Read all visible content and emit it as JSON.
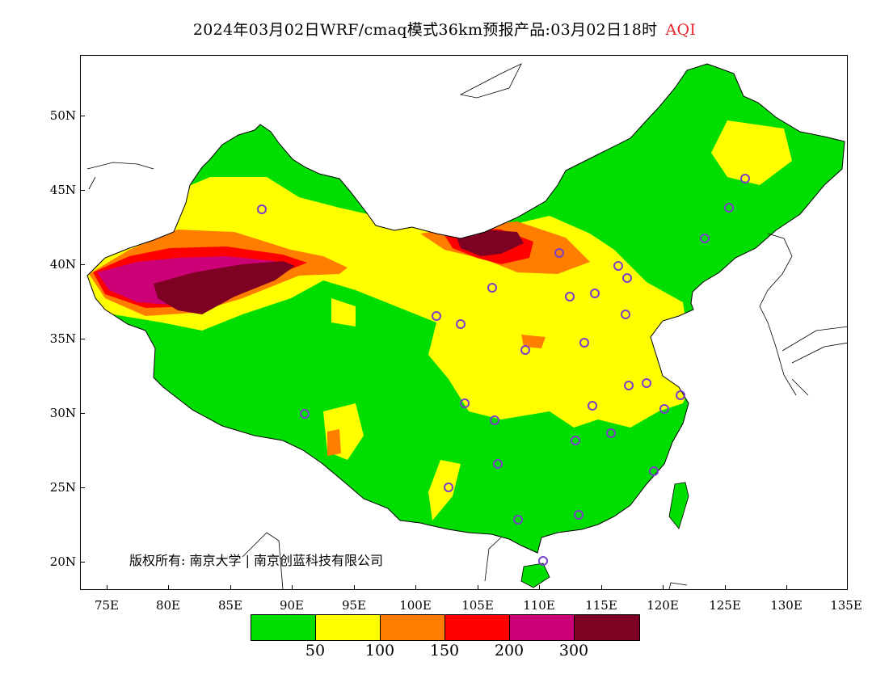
{
  "title": {
    "text": "2024年03月02日WRF/cmaq模式36km预报产品:03月02日18时",
    "variable": "AQI",
    "variable_color": "#e8262b"
  },
  "axes": {
    "lat_labels": [
      "50N",
      "45N",
      "40N",
      "35N",
      "30N",
      "25N",
      "20N"
    ],
    "lon_labels": [
      "75E",
      "80E",
      "85E",
      "90E",
      "95E",
      "100E",
      "105E",
      "110E",
      "115E",
      "120E",
      "125E",
      "130E",
      "135E"
    ],
    "lat_values": [
      50,
      45,
      40,
      35,
      30,
      25,
      20
    ],
    "lon_values": [
      75,
      80,
      85,
      90,
      95,
      100,
      105,
      110,
      115,
      120,
      125,
      130,
      135
    ]
  },
  "copyright": "版权所有: 南京大学 | 南京创蓝科技有限公司",
  "legend": {
    "colors": [
      "#00dd00",
      "#ffff00",
      "#ff7e00",
      "#ff0000",
      "#cc0077",
      "#7e0023"
    ],
    "labels": [
      "50",
      "100",
      "150",
      "200",
      "300"
    ]
  },
  "map": {
    "region": "China",
    "palette": {
      "good": "#00dd00",
      "moderate": "#ffff00",
      "usg": "#ff7e00",
      "unhealthy": "#ff0000",
      "very_unhealthy": "#cc0077",
      "hazardous": "#7e0023",
      "station_marker": "#7b3fc7"
    }
  }
}
